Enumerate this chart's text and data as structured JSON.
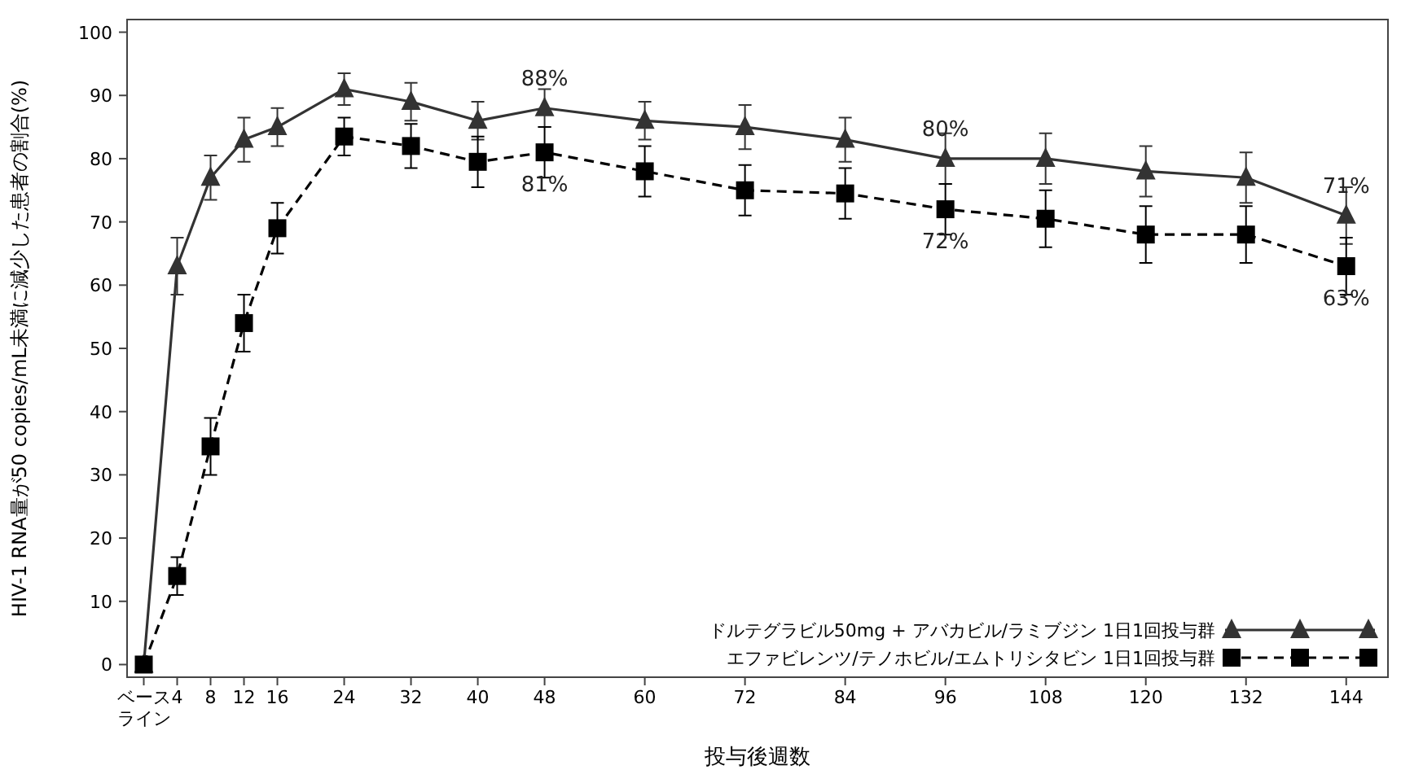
{
  "chart_data": {
    "type": "line",
    "xlabel": "投与後週数",
    "ylabel": "HIV-1 RNA量が50 copies/mL未満に減少した患者の割合(%)",
    "x": [
      0,
      4,
      8,
      12,
      16,
      24,
      32,
      40,
      48,
      60,
      72,
      84,
      96,
      108,
      120,
      132,
      144
    ],
    "xlim": [
      -2,
      149
    ],
    "xticks": [
      {
        "value": 0,
        "label": "ベースライン"
      },
      4,
      8,
      12,
      16,
      24,
      32,
      40,
      48,
      60,
      72,
      84,
      96,
      108,
      120,
      132,
      144
    ],
    "ylim": [
      -2,
      102
    ],
    "yticks": [
      0,
      10,
      20,
      30,
      40,
      50,
      60,
      70,
      80,
      90,
      100
    ],
    "grid": false,
    "legend": "bottom right",
    "series": [
      {
        "name": "ドルテグラビル50mg + アバカビル/ラミブジン 1日1回投与群",
        "color": "#333333",
        "marker": "triangle",
        "line_style": "solid",
        "values": [
          0,
          63,
          77,
          83,
          85,
          91,
          89,
          86,
          88,
          86,
          85,
          83,
          80,
          80,
          78,
          77,
          71
        ],
        "errors": [
          null,
          4.5,
          3.5,
          3.5,
          3,
          2.5,
          3,
          3,
          3,
          3,
          3.5,
          3.5,
          4,
          4,
          4,
          4,
          4.5
        ],
        "value_labels": [
          null,
          null,
          null,
          null,
          null,
          null,
          null,
          null,
          "88%",
          null,
          null,
          null,
          "80%",
          null,
          null,
          null,
          "71%"
        ]
      },
      {
        "name": "エファビレンツ/テノホビル/エムトリシタビン 1日1回投与群",
        "color": "#000000",
        "marker": "square",
        "line_style": "dashed",
        "values": [
          0,
          14,
          34.5,
          54,
          69,
          83.5,
          82,
          79.5,
          81,
          78,
          75,
          74.5,
          72,
          70.5,
          68,
          68,
          63
        ],
        "errors": [
          null,
          3,
          4.5,
          4.5,
          4,
          3,
          3.5,
          4,
          4,
          4,
          4,
          4,
          4,
          4.5,
          4.5,
          4.5,
          4.5
        ],
        "value_labels": [
          null,
          null,
          null,
          null,
          null,
          null,
          null,
          null,
          "81%",
          null,
          null,
          null,
          "72%",
          null,
          null,
          null,
          "63%"
        ]
      }
    ]
  }
}
